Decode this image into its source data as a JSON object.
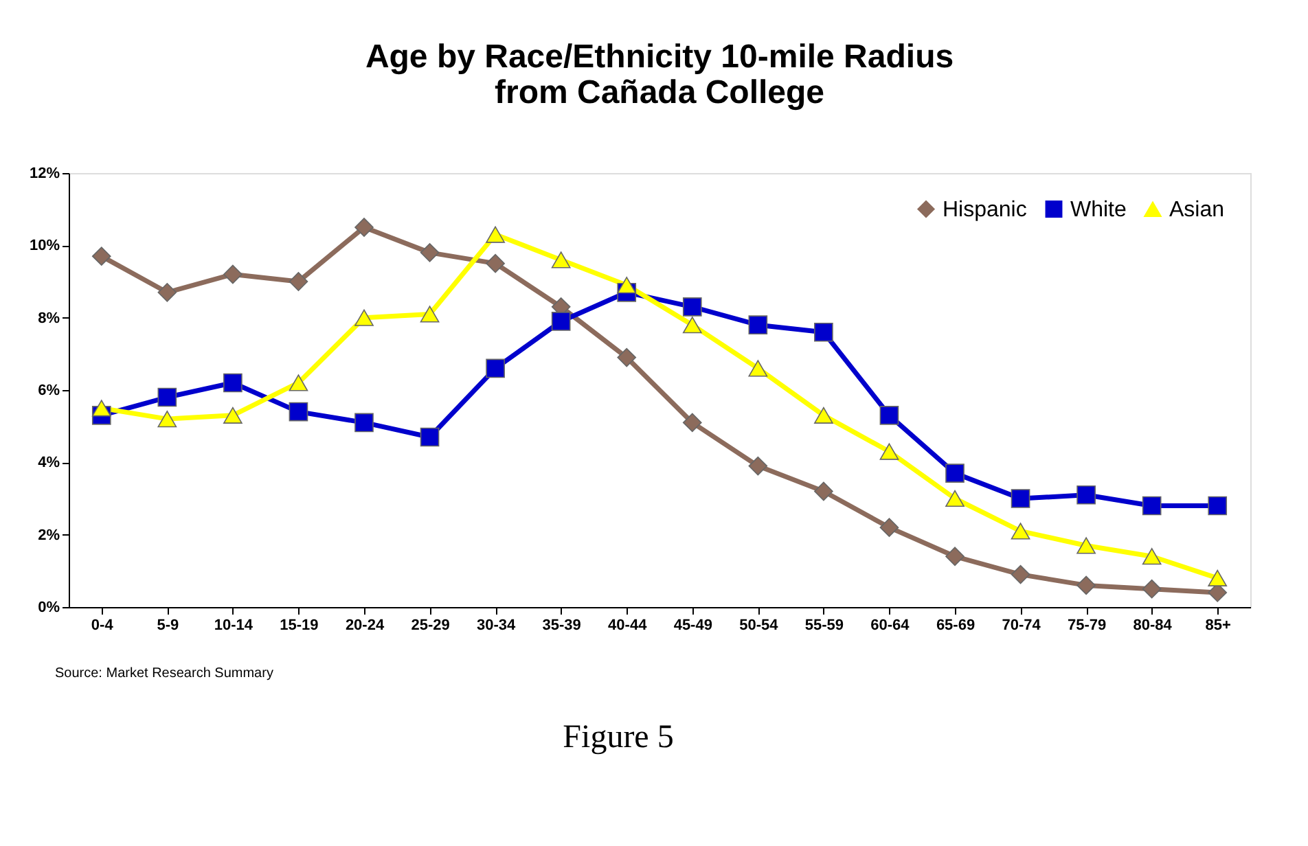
{
  "chart_data": {
    "type": "line",
    "title": "Age by Race/Ethnicity 10-mile Radius\nfrom Cañada College",
    "categories": [
      "0-4",
      "5-9",
      "10-14",
      "15-19",
      "20-24",
      "25-29",
      "30-34",
      "35-39",
      "40-44",
      "45-49",
      "50-54",
      "55-59",
      "60-64",
      "65-69",
      "70-74",
      "75-79",
      "80-84",
      "85+"
    ],
    "series": [
      {
        "name": "Hispanic",
        "color": "#8c6b5c",
        "marker": "diamond",
        "values": [
          9.7,
          8.7,
          9.2,
          9.0,
          10.5,
          9.8,
          9.5,
          8.3,
          6.9,
          5.1,
          3.9,
          3.2,
          2.2,
          1.4,
          0.9,
          0.6,
          0.5,
          0.4
        ]
      },
      {
        "name": "White",
        "color": "#0000cc",
        "marker": "square",
        "values": [
          5.3,
          5.8,
          6.2,
          5.4,
          5.1,
          4.7,
          6.6,
          7.9,
          8.7,
          8.3,
          7.8,
          7.6,
          5.3,
          3.7,
          3.0,
          3.1,
          2.8,
          2.8
        ]
      },
      {
        "name": "Asian",
        "color": "#ffff00",
        "marker": "triangle",
        "values": [
          5.5,
          5.2,
          5.3,
          6.2,
          8.0,
          8.1,
          10.3,
          9.6,
          8.9,
          7.8,
          6.6,
          5.3,
          4.3,
          3.0,
          2.1,
          1.7,
          1.4,
          0.8
        ]
      }
    ],
    "ylim": [
      0,
      12
    ],
    "yticks": [
      {
        "value": 0,
        "label": "0%"
      },
      {
        "value": 2,
        "label": "2%"
      },
      {
        "value": 4,
        "label": "4%"
      },
      {
        "value": 6,
        "label": "6%"
      },
      {
        "value": 8,
        "label": "8%"
      },
      {
        "value": 10,
        "label": "10%"
      },
      {
        "value": 12,
        "label": "12%"
      }
    ],
    "grid": false,
    "legend": "top right",
    "line_style": "solid",
    "annotations": [
      "Source: Market Research Summary",
      "Figure 5"
    ]
  }
}
